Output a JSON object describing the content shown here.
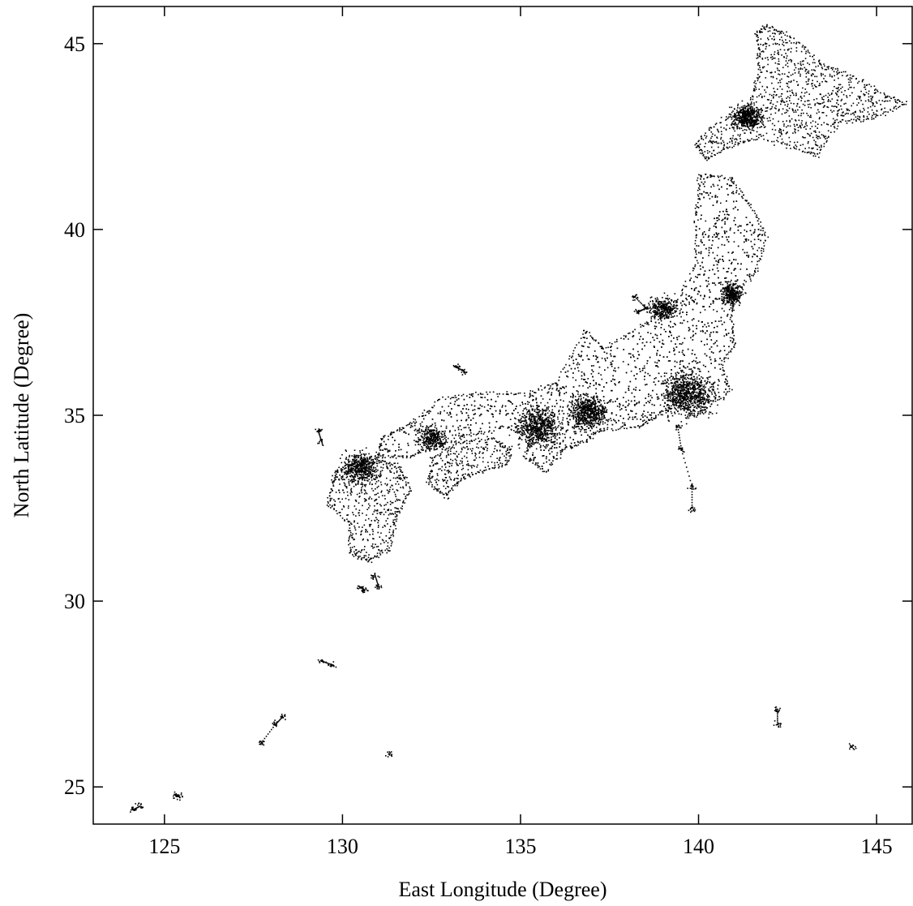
{
  "chart_data": {
    "type": "scatter",
    "title": "",
    "xlabel": "East Longitude (Degree)",
    "ylabel": "North Latitude (Degree)",
    "xlim": [
      123,
      146
    ],
    "ylim": [
      24,
      46
    ],
    "xticks": [
      "125",
      "130",
      "135",
      "140",
      "145"
    ],
    "yticks": [
      "25",
      "30",
      "35",
      "40",
      "45"
    ],
    "grid": false,
    "legend": "none",
    "marker_color": "#000000",
    "region_outlines": [
      {
        "name": "hokkaido",
        "points": [
          [
            141.9,
            45.5
          ],
          [
            142.6,
            45.2
          ],
          [
            143.4,
            44.5
          ],
          [
            144.4,
            44.1
          ],
          [
            145.3,
            43.6
          ],
          [
            145.8,
            43.4
          ],
          [
            144.9,
            43.0
          ],
          [
            143.9,
            42.9
          ],
          [
            143.3,
            42.0
          ],
          [
            142.7,
            42.2
          ],
          [
            141.7,
            42.5
          ],
          [
            141.0,
            42.3
          ],
          [
            140.2,
            41.9
          ],
          [
            139.9,
            42.3
          ],
          [
            140.5,
            42.9
          ],
          [
            141.4,
            43.3
          ],
          [
            141.7,
            44.3
          ],
          [
            141.6,
            45.3
          ]
        ]
      },
      {
        "name": "honshu",
        "points": [
          [
            140.0,
            41.5
          ],
          [
            140.9,
            41.4
          ],
          [
            141.5,
            40.6
          ],
          [
            141.9,
            39.8
          ],
          [
            141.6,
            38.9
          ],
          [
            141.0,
            38.3
          ],
          [
            140.9,
            37.6
          ],
          [
            141.0,
            36.9
          ],
          [
            140.6,
            36.4
          ],
          [
            140.9,
            35.7
          ],
          [
            140.3,
            35.3
          ],
          [
            139.9,
            35.0
          ],
          [
            139.4,
            35.3
          ],
          [
            138.8,
            35.0
          ],
          [
            138.3,
            34.7
          ],
          [
            137.2,
            34.6
          ],
          [
            136.8,
            34.3
          ],
          [
            136.2,
            34.1
          ],
          [
            135.7,
            33.5
          ],
          [
            135.1,
            33.9
          ],
          [
            135.3,
            34.4
          ],
          [
            134.6,
            34.7
          ],
          [
            133.6,
            34.5
          ],
          [
            132.7,
            34.2
          ],
          [
            131.9,
            33.9
          ],
          [
            131.0,
            33.9
          ],
          [
            131.1,
            34.4
          ],
          [
            131.9,
            34.8
          ],
          [
            132.8,
            35.5
          ],
          [
            134.0,
            35.6
          ],
          [
            135.2,
            35.6
          ],
          [
            136.0,
            35.9
          ],
          [
            136.8,
            37.3
          ],
          [
            137.3,
            36.8
          ],
          [
            138.5,
            37.5
          ],
          [
            139.4,
            38.1
          ],
          [
            139.9,
            39.0
          ],
          [
            139.9,
            40.2
          ]
        ]
      },
      {
        "name": "shikoku",
        "points": [
          [
            132.5,
            33.9
          ],
          [
            133.3,
            34.3
          ],
          [
            134.2,
            34.4
          ],
          [
            134.7,
            34.1
          ],
          [
            134.6,
            33.7
          ],
          [
            133.9,
            33.5
          ],
          [
            133.3,
            33.3
          ],
          [
            132.9,
            32.8
          ],
          [
            132.4,
            33.2
          ]
        ]
      },
      {
        "name": "kyushu",
        "points": [
          [
            129.8,
            33.5
          ],
          [
            130.4,
            33.8
          ],
          [
            131.0,
            33.9
          ],
          [
            131.6,
            33.6
          ],
          [
            131.9,
            33.0
          ],
          [
            131.5,
            32.3
          ],
          [
            131.3,
            31.4
          ],
          [
            130.7,
            31.1
          ],
          [
            130.2,
            31.3
          ],
          [
            130.2,
            32.1
          ],
          [
            129.6,
            32.6
          ],
          [
            129.7,
            33.2
          ]
        ]
      }
    ],
    "small_islands": [
      {
        "name": "sado",
        "points": [
          [
            138.2,
            38.2
          ],
          [
            138.5,
            37.9
          ],
          [
            138.3,
            37.8
          ]
        ]
      },
      {
        "name": "oki",
        "points": [
          [
            133.2,
            36.3
          ],
          [
            133.4,
            36.2
          ]
        ]
      },
      {
        "name": "tsushima",
        "points": [
          [
            129.3,
            34.6
          ],
          [
            129.4,
            34.3
          ]
        ]
      },
      {
        "name": "tanegashima",
        "points": [
          [
            130.9,
            30.7
          ],
          [
            131.0,
            30.4
          ]
        ]
      },
      {
        "name": "yakushima",
        "points": [
          [
            130.5,
            30.4
          ],
          [
            130.6,
            30.3
          ]
        ]
      },
      {
        "name": "amami",
        "points": [
          [
            129.4,
            28.4
          ],
          [
            129.7,
            28.3
          ]
        ]
      },
      {
        "name": "okinawa",
        "points": [
          [
            127.7,
            26.2
          ],
          [
            128.1,
            26.7
          ],
          [
            128.3,
            26.9
          ]
        ]
      },
      {
        "name": "ishigaki",
        "points": [
          [
            124.1,
            24.4
          ],
          [
            124.3,
            24.5
          ]
        ]
      },
      {
        "name": "miyako",
        "points": [
          [
            125.3,
            24.8
          ],
          [
            125.4,
            24.75
          ]
        ]
      },
      {
        "name": "izu-islands",
        "points": [
          [
            139.4,
            34.7
          ],
          [
            139.5,
            34.1
          ],
          [
            139.8,
            33.1
          ],
          [
            139.8,
            32.5
          ]
        ]
      },
      {
        "name": "ogasawara",
        "points": [
          [
            142.2,
            27.1
          ],
          [
            142.2,
            26.7
          ]
        ]
      },
      {
        "name": "minamidaito",
        "points": [
          [
            131.3,
            25.9
          ]
        ]
      },
      {
        "name": "kitadaito-east",
        "points": [
          [
            144.3,
            26.1
          ]
        ]
      }
    ],
    "dense_clusters": [
      {
        "name": "kanto",
        "center": [
          139.7,
          35.6
        ],
        "spread": [
          0.35,
          0.3
        ],
        "weight": 5
      },
      {
        "name": "kansai",
        "center": [
          135.5,
          34.7
        ],
        "spread": [
          0.3,
          0.25
        ],
        "weight": 4
      },
      {
        "name": "nagoya",
        "center": [
          136.9,
          35.1
        ],
        "spread": [
          0.25,
          0.2
        ],
        "weight": 4
      },
      {
        "name": "fukuoka",
        "center": [
          130.5,
          33.6
        ],
        "spread": [
          0.25,
          0.2
        ],
        "weight": 3
      },
      {
        "name": "sapporo",
        "center": [
          141.35,
          43.05
        ],
        "spread": [
          0.2,
          0.15
        ],
        "weight": 3
      },
      {
        "name": "sendai",
        "center": [
          140.9,
          38.3
        ],
        "spread": [
          0.15,
          0.15
        ],
        "weight": 2
      },
      {
        "name": "hiroshima",
        "center": [
          132.5,
          34.4
        ],
        "spread": [
          0.2,
          0.15
        ],
        "weight": 2
      },
      {
        "name": "niigata",
        "center": [
          139.0,
          37.9
        ],
        "spread": [
          0.2,
          0.15
        ],
        "weight": 2
      }
    ]
  }
}
